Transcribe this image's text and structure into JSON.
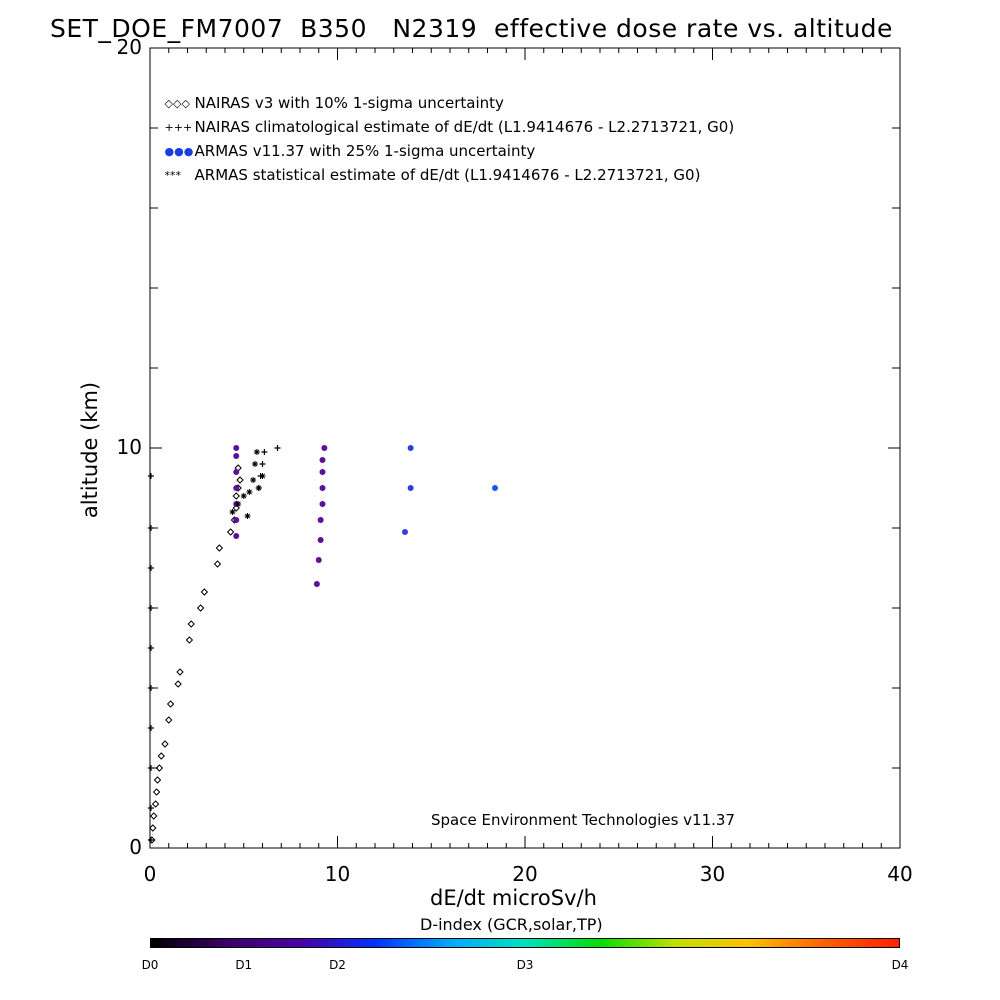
{
  "title": "SET_DOE_FM7007  B350   N2319  effective dose rate vs. altitude",
  "legend": [
    {
      "symbol": "◇◇◇",
      "text": "NAIRAS v3 with 10% 1-sigma uncertainty",
      "color": "#000000"
    },
    {
      "symbol": "+++",
      "text": "NAIRAS climatological estimate of dE/dt (L1.9414676 - L2.2713721, G0)",
      "color": "#000000"
    },
    {
      "symbol": "●●●",
      "text": "ARMAS v11.37 with 25% 1-sigma uncertainty",
      "color": "#1a3de0"
    },
    {
      "symbol": "***",
      "text": "ARMAS statistical estimate of dE/dt (L1.9414676 - L2.2713721, G0)",
      "color": "#000000"
    }
  ],
  "credit": "Space Environment Technologies v11.37",
  "colorbar": {
    "title": "D-index (GCR,solar,TP)",
    "labels": [
      {
        "text": "D0",
        "pos": 0.0
      },
      {
        "text": "D1",
        "pos": 0.125
      },
      {
        "text": "D2",
        "pos": 0.25
      },
      {
        "text": "D3",
        "pos": 0.5
      },
      {
        "text": "D4",
        "pos": 1.0
      }
    ],
    "colors": [
      "#000000",
      "#3a0066",
      "#4b00a8",
      "#0033ff",
      "#00aaff",
      "#00e0c0",
      "#00e000",
      "#c0e000",
      "#ffc000",
      "#ff6000",
      "#ff2000"
    ]
  },
  "chart_data": {
    "type": "scatter",
    "title": "SET_DOE_FM7007  B350   N2319  effective dose rate vs. altitude",
    "xlabel": "dE/dt microSv/h",
    "ylabel": "altitude (km)",
    "xlim": [
      0,
      40
    ],
    "ylim": [
      0,
      20
    ],
    "xticks": [
      0,
      10,
      20,
      30,
      40
    ],
    "yticks": [
      0,
      10,
      20
    ],
    "series": [
      {
        "name": "NAIRAS v3 with 10% 1-sigma uncertainty",
        "marker": "diamond",
        "color": "#000000",
        "points": [
          [
            0.1,
            0.2
          ],
          [
            0.15,
            0.5
          ],
          [
            0.2,
            0.8
          ],
          [
            0.3,
            1.1
          ],
          [
            0.35,
            1.4
          ],
          [
            0.4,
            1.7
          ],
          [
            0.5,
            2.0
          ],
          [
            0.6,
            2.3
          ],
          [
            0.8,
            2.6
          ],
          [
            1.0,
            3.2
          ],
          [
            1.1,
            3.6
          ],
          [
            1.5,
            4.1
          ],
          [
            1.6,
            4.4
          ],
          [
            2.1,
            5.2
          ],
          [
            2.2,
            5.6
          ],
          [
            2.7,
            6.0
          ],
          [
            2.9,
            6.4
          ],
          [
            3.6,
            7.1
          ],
          [
            3.7,
            7.5
          ],
          [
            4.3,
            7.9
          ],
          [
            4.5,
            8.2
          ],
          [
            4.6,
            8.5
          ],
          [
            4.6,
            8.8
          ],
          [
            4.7,
            9.0
          ],
          [
            4.8,
            9.2
          ],
          [
            4.7,
            9.5
          ]
        ]
      },
      {
        "name": "NAIRAS climatological estimate of dE/dt (L1.9414676 - L2.2713721, G0)",
        "marker": "plus",
        "color": "#000000",
        "points": [
          [
            0.05,
            0.2
          ],
          [
            0.05,
            1.0
          ],
          [
            0.05,
            2.0
          ],
          [
            0.05,
            3.0
          ],
          [
            0.05,
            4.0
          ],
          [
            0.05,
            5.0
          ],
          [
            0.05,
            6.0
          ],
          [
            0.05,
            7.0
          ],
          [
            0.05,
            8.0
          ],
          [
            0.05,
            9.3
          ],
          [
            5.8,
            9.0
          ],
          [
            5.9,
            9.3
          ],
          [
            6.0,
            9.6
          ],
          [
            6.1,
            9.9
          ],
          [
            6.8,
            10.0
          ]
        ]
      },
      {
        "name": "ARMAS v11.37 with 25% 1-sigma uncertainty",
        "marker": "dot",
        "color": "#1a3de0",
        "points": [
          [
            4.6,
            7.8
          ],
          [
            4.6,
            8.2
          ],
          [
            4.6,
            8.6
          ],
          [
            4.6,
            9.0
          ],
          [
            4.6,
            9.4
          ],
          [
            4.6,
            9.8
          ],
          [
            4.6,
            10.0
          ],
          [
            8.9,
            6.6
          ],
          [
            9.0,
            7.2
          ],
          [
            9.1,
            7.7
          ],
          [
            9.1,
            8.2
          ],
          [
            9.2,
            8.6
          ],
          [
            9.2,
            9.0
          ],
          [
            9.2,
            9.4
          ],
          [
            9.2,
            9.7
          ],
          [
            9.3,
            10.0
          ],
          [
            13.6,
            7.9
          ],
          [
            13.9,
            9.0
          ],
          [
            13.9,
            10.0
          ],
          [
            18.4,
            9.0
          ]
        ]
      },
      {
        "name": "ARMAS statistical estimate of dE/dt (L1.9414676 - L2.2713721, G0)",
        "marker": "asterisk",
        "color": "#000000",
        "points": [
          [
            4.4,
            8.4
          ],
          [
            4.7,
            8.6
          ],
          [
            5.0,
            8.8
          ],
          [
            5.2,
            8.3
          ],
          [
            5.3,
            8.9
          ],
          [
            5.5,
            9.2
          ],
          [
            5.6,
            9.6
          ],
          [
            5.7,
            9.9
          ],
          [
            5.8,
            9.0
          ],
          [
            6.0,
            9.3
          ]
        ]
      }
    ],
    "colorbar_label": "D-index (GCR,solar,TP)",
    "grid": false
  }
}
